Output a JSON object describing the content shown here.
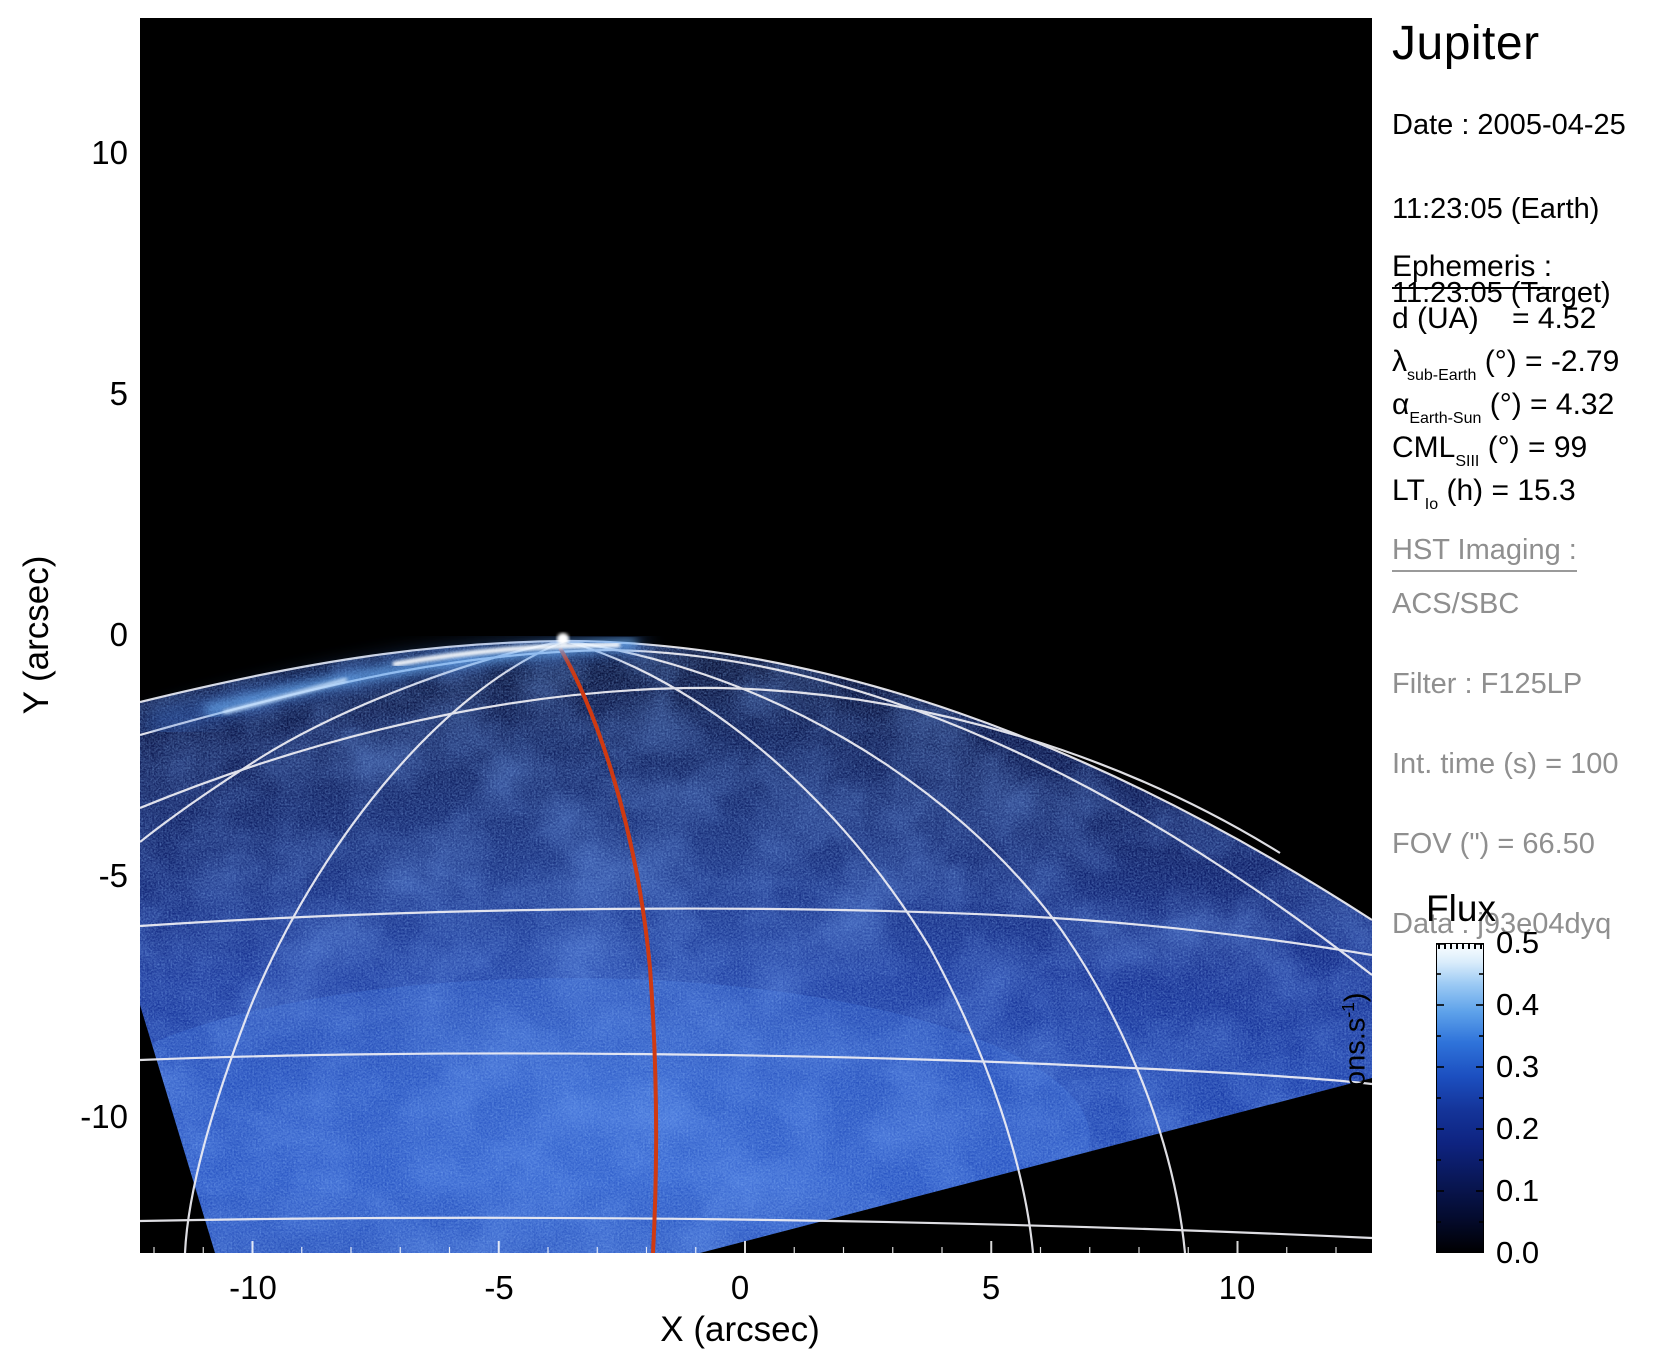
{
  "title": "Jupiter",
  "info": {
    "date_line1": "Date : 2005-04-25",
    "date_line2": "11:23:05 (Earth)",
    "date_line3": "11:23:05 (Target)",
    "ephemeris_heading": "Ephemeris :",
    "ephemeris": [
      {
        "sym": "d",
        "sub": "",
        "rest": " (UA)    = 4.52"
      },
      {
        "sym": "λ",
        "sub": "sub-Earth",
        "rest": " (°) = -2.79"
      },
      {
        "sym": "α",
        "sub": "Earth-Sun",
        "rest": " (°) = 4.32"
      },
      {
        "sym": "CML",
        "sub": "SIII",
        "rest": " (°) = 99"
      },
      {
        "sym": "LT",
        "sub": "Io",
        "rest": " (h) = 15.3"
      }
    ],
    "hst_heading": "HST Imaging :",
    "hst_lines": [
      "ACS/SBC",
      "Filter : F125LP",
      "Int. time (s) = 100",
      "FOV (\") = 66.50",
      "Data : j93e04dyq"
    ]
  },
  "axes": {
    "x_label": "X (arcsec)",
    "y_label": "Y (arcsec)",
    "x_ticks": [
      "-10",
      "-5",
      "0",
      "5",
      "10"
    ],
    "y_ticks": [
      "10",
      "5",
      "0",
      "-5",
      "-10"
    ]
  },
  "colorbar": {
    "title": "Flux",
    "unit_pre": "(electrons.s",
    "unit_sup": "-1",
    "unit_post": ")",
    "tick_labels": [
      "0.5",
      "0.4",
      "0.3",
      "0.2",
      "0.1",
      "0.0"
    ]
  },
  "chart_data": {
    "type": "heatmap",
    "title": "Jupiter",
    "xlabel": "X (arcsec)",
    "ylabel": "Y (arcsec)",
    "xlim": [
      -12.5,
      12.7
    ],
    "ylim": [
      -12.8,
      12.8
    ],
    "x_ticks": [
      -10,
      -5,
      0,
      5,
      10
    ],
    "y_ticks": [
      10,
      5,
      0,
      -5,
      -10
    ],
    "grid": "planetocentric graticule (white) drawn over planet disk",
    "legend_position": "colorbar right",
    "colorbar": {
      "title": "Flux",
      "unit": "electrons.s-1",
      "min": 0.0,
      "max": 0.5,
      "ticks": [
        0.0,
        0.1,
        0.2,
        0.3,
        0.4,
        0.5
      ]
    },
    "content": "Far-UV HST/ACS-SBC image of Jupiter's north polar limb. Bright auroral emission arc hugs the limb from about (-10,-2) to (-2.5,0) arcsec, brightest near (-5,0). The planet disk (speckled blue, flux ~0.05-0.25 electrons/s) fills the lower part of the frame below the limb; sky above is black (~0). A red-orange meridian line runs from the pole near (-3.8,-0.1) down to (-2,-12.8). Detector field-of-view edges cut black wedges in the lower-left and lower-right corners of the disk.",
    "annotations": [
      "red meridian line at the central meridian longitude",
      "white latitude/longitude grid",
      "auroral arc along northern limb"
    ]
  }
}
